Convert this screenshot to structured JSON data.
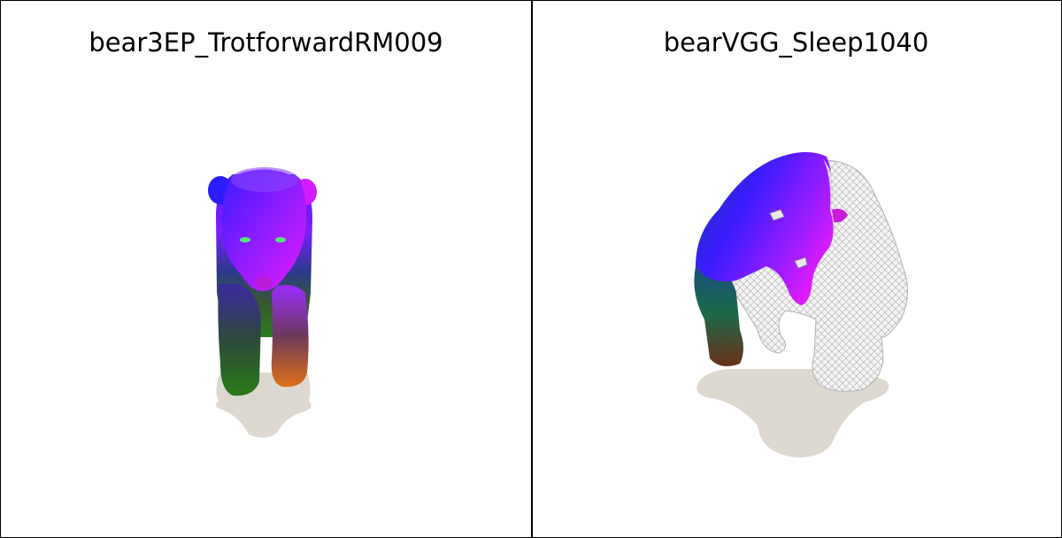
{
  "panels": [
    {
      "title": "bear3EP_TrotforwardRM009"
    },
    {
      "title": "bearVGG_Sleep1040"
    }
  ],
  "colors": {
    "background": "#ffffff",
    "border": "#000000",
    "shadow": "#dcd8cf",
    "mesh_blue": "#3a1cff",
    "mesh_magenta": "#d21cff",
    "mesh_green": "#2e7a1e",
    "mesh_orange": "#d0601a",
    "wireframe": "#e8e8e8"
  }
}
